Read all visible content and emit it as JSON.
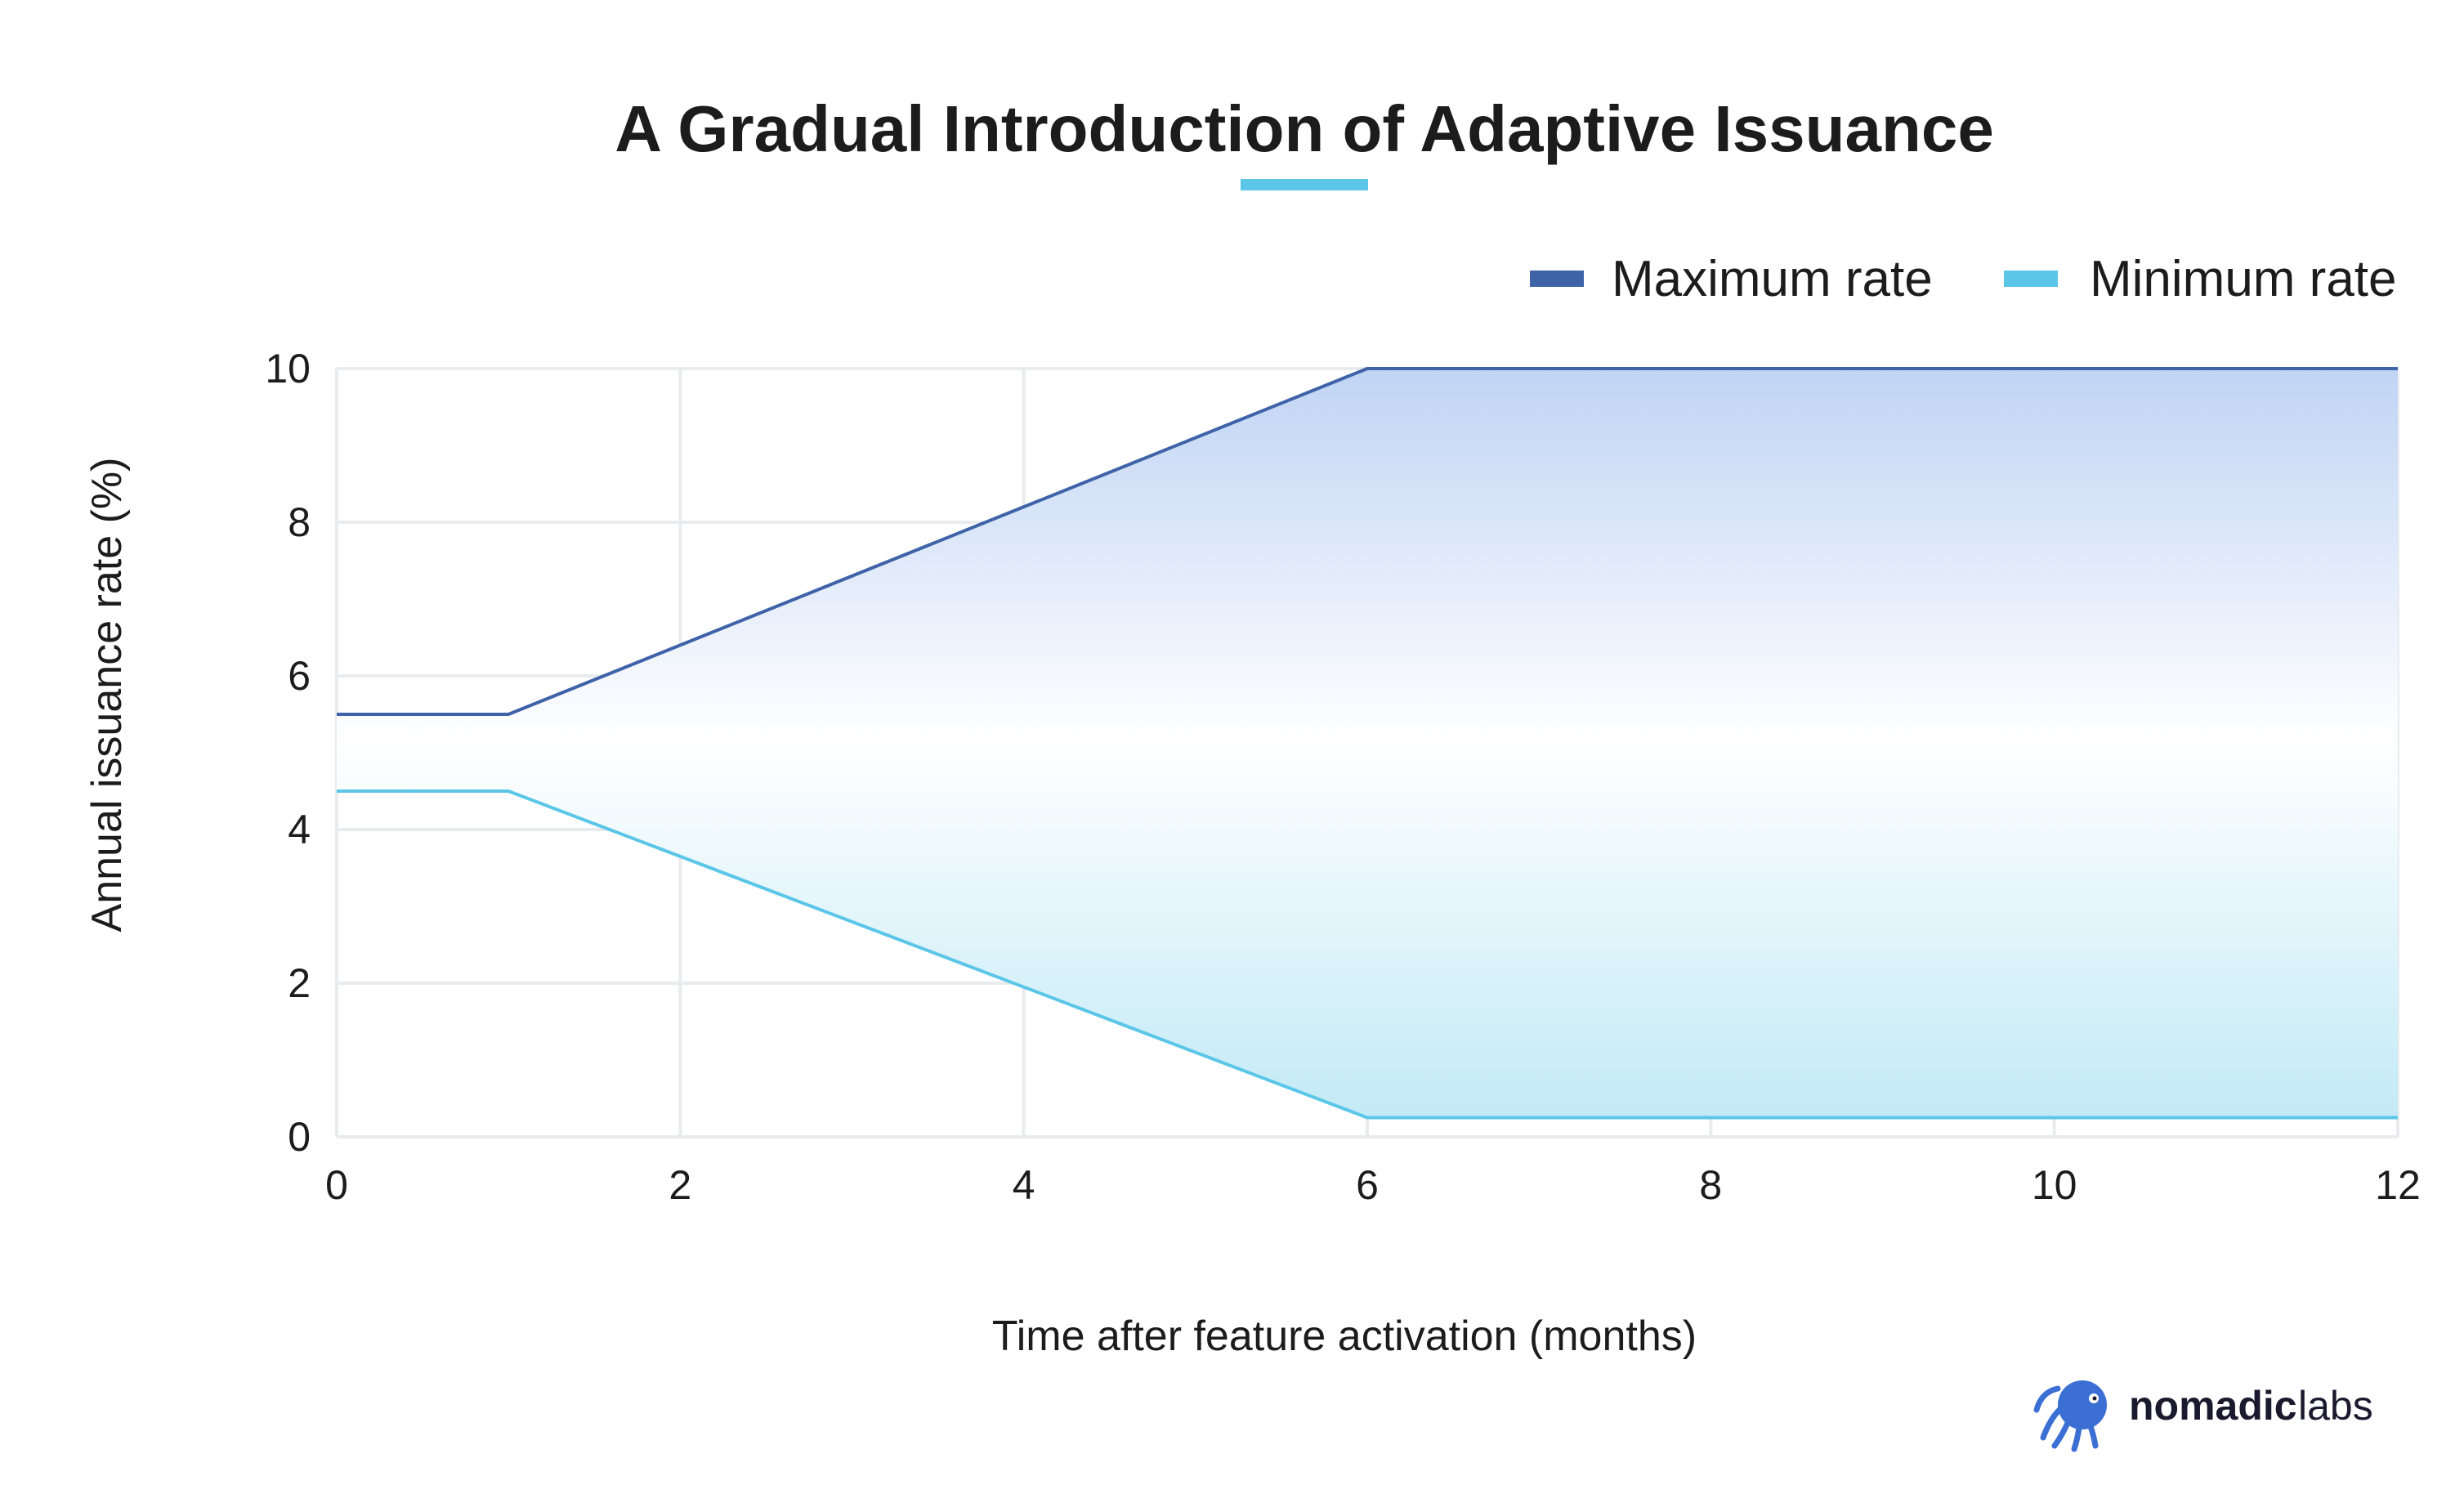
{
  "chart_data": {
    "type": "area",
    "title": "A Gradual Introduction of Adaptive Issuance",
    "xlabel": "Time after feature activation (months)",
    "ylabel": "Annual issuance rate (%)",
    "xlim": [
      0,
      12
    ],
    "ylim": [
      0,
      10
    ],
    "x_ticks": [
      "0",
      "2",
      "4",
      "6",
      "8",
      "10",
      "12"
    ],
    "y_ticks": [
      "0",
      "2",
      "4",
      "6",
      "8",
      "10"
    ],
    "grid": true,
    "legend_position": "top-right",
    "series": [
      {
        "name": "Maximum rate",
        "color": "#3f63a8",
        "points": [
          [
            0,
            5.5
          ],
          [
            1,
            5.5
          ],
          [
            6,
            10
          ],
          [
            12,
            10
          ]
        ]
      },
      {
        "name": "Minimum rate",
        "color": "#5bc6e8",
        "points": [
          [
            0,
            4.5
          ],
          [
            1,
            4.5
          ],
          [
            6,
            0.25
          ],
          [
            12,
            0.25
          ]
        ]
      }
    ],
    "fill_colors": {
      "top": "#c0d4f4",
      "middle": "#ffffff",
      "bottom": "#c2eaf6"
    },
    "title_underline_color": "#5bc6e8"
  },
  "branding": {
    "logo_text_bold": "nomadic",
    "logo_text_light": "labs",
    "logo_icon": "octopus-icon",
    "logo_color": "#3b6fd4"
  }
}
